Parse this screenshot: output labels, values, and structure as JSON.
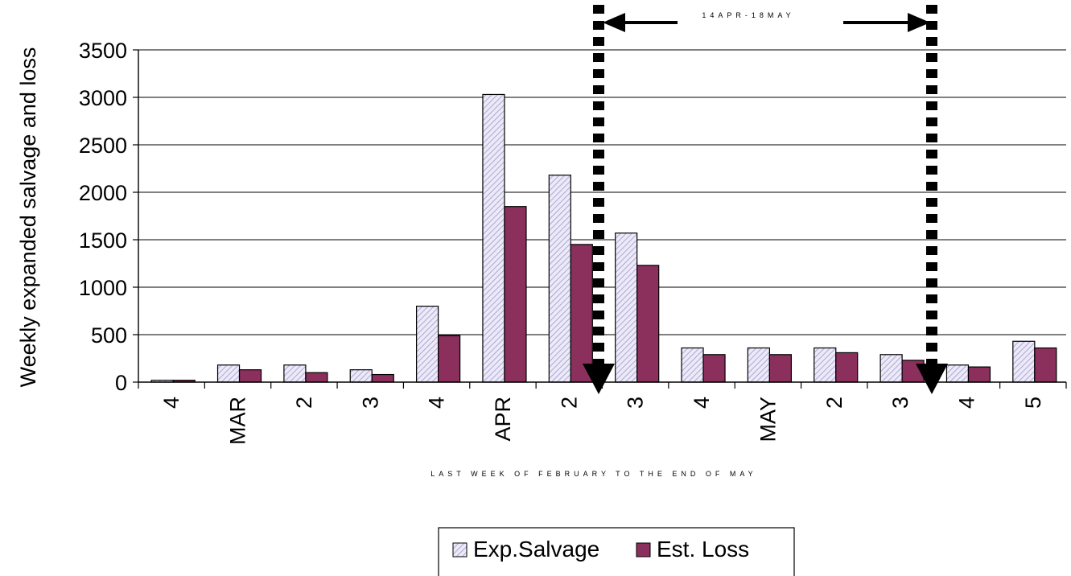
{
  "chart_data": {
    "type": "bar",
    "title": "",
    "ylabel": "Weekly expanded salvage and loss",
    "xlabel": "LAST WEEK OF FEBRUARY TO THE END OF MAY",
    "ylim": [
      0,
      3500
    ],
    "yticks": [
      0,
      500,
      1000,
      1500,
      2000,
      2500,
      3000,
      3500
    ],
    "grid": true,
    "categories": [
      "4",
      "MAR",
      "2",
      "3",
      "4",
      "APR",
      "2",
      "3",
      "4",
      "MAY",
      "2",
      "3",
      "4",
      "5"
    ],
    "series": [
      {
        "name": "Exp.Salvage",
        "color": "#d8d4ee",
        "pattern": "diagonal-hatch",
        "values": [
          20,
          180,
          180,
          130,
          800,
          3030,
          2180,
          1570,
          360,
          360,
          360,
          290,
          180,
          430
        ]
      },
      {
        "name": "Est. Loss",
        "color": "#8b2f5c",
        "values": [
          20,
          130,
          100,
          80,
          490,
          1850,
          1450,
          1230,
          290,
          290,
          310,
          230,
          160,
          360
        ]
      }
    ],
    "legend": {
      "placement": "bottom-center",
      "entries": [
        "Exp.Salvage",
        "Est. Loss"
      ]
    },
    "annotations": [
      {
        "text": "14APR-18MAY",
        "type": "dotted-range-marker",
        "from": "14APR",
        "to": "18MAY"
      }
    ]
  }
}
